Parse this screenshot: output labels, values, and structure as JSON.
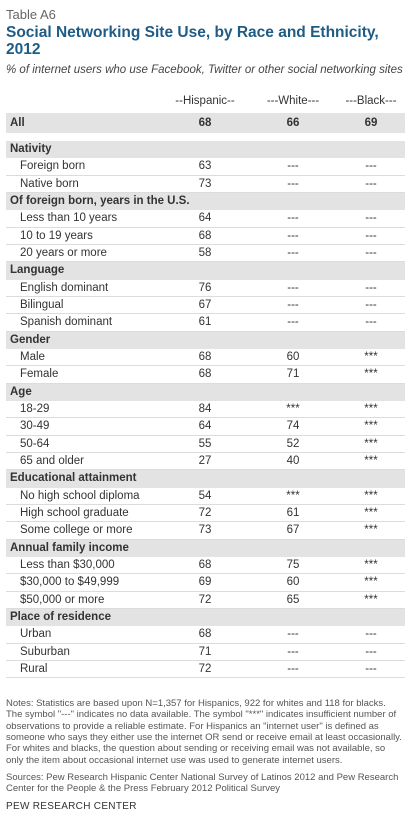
{
  "tag": "Table A6",
  "title": "Social Networking Site Use, by Race and Ethnicity, 2012",
  "subtitle": "% of internet users who use Facebook, Twitter or other social networking sites",
  "columns": [
    "--Hispanic--",
    "---White---",
    "---Black---"
  ],
  "all": {
    "label": "All",
    "values": [
      "68",
      "66",
      "69"
    ]
  },
  "sections": [
    {
      "title": "Nativity",
      "rows": [
        {
          "label": "Foreign born",
          "values": [
            "63",
            "---",
            "---"
          ]
        },
        {
          "label": "Native born",
          "values": [
            "73",
            "---",
            "---"
          ]
        }
      ]
    },
    {
      "title": "Of foreign born, years in the U.S.",
      "rows": [
        {
          "label": "Less than 10 years",
          "values": [
            "64",
            "---",
            "---"
          ]
        },
        {
          "label": "10 to 19 years",
          "values": [
            "68",
            "---",
            "---"
          ]
        },
        {
          "label": "20 years or more",
          "values": [
            "58",
            "---",
            "---"
          ]
        }
      ]
    },
    {
      "title": "Language",
      "rows": [
        {
          "label": "English dominant",
          "values": [
            "76",
            "---",
            "---"
          ]
        },
        {
          "label": "Bilingual",
          "values": [
            "67",
            "---",
            "---"
          ]
        },
        {
          "label": "Spanish dominant",
          "values": [
            "61",
            "---",
            "---"
          ]
        }
      ]
    },
    {
      "title": "Gender",
      "rows": [
        {
          "label": "Male",
          "values": [
            "68",
            "60",
            "***"
          ]
        },
        {
          "label": "Female",
          "values": [
            "68",
            "71",
            "***"
          ]
        }
      ]
    },
    {
      "title": "Age",
      "rows": [
        {
          "label": "18-29",
          "values": [
            "84",
            "***",
            "***"
          ]
        },
        {
          "label": "30-49",
          "values": [
            "64",
            "74",
            "***"
          ]
        },
        {
          "label": "50-64",
          "values": [
            "55",
            "52",
            "***"
          ]
        },
        {
          "label": "65 and older",
          "values": [
            "27",
            "40",
            "***"
          ]
        }
      ]
    },
    {
      "title": "Educational attainment",
      "rows": [
        {
          "label": "No high school diploma",
          "values": [
            "54",
            "***",
            "***"
          ]
        },
        {
          "label": "High school graduate",
          "values": [
            "72",
            "61",
            "***"
          ]
        },
        {
          "label": "Some college or more",
          "values": [
            "73",
            "67",
            "***"
          ]
        }
      ]
    },
    {
      "title": "Annual family income",
      "rows": [
        {
          "label": "Less than $30,000",
          "values": [
            "68",
            "75",
            "***"
          ]
        },
        {
          "label": "$30,000 to $49,999",
          "values": [
            "69",
            "60",
            "***"
          ]
        },
        {
          "label": "$50,000 or more",
          "values": [
            "72",
            "65",
            "***"
          ]
        }
      ]
    },
    {
      "title": "Place of residence",
      "rows": [
        {
          "label": "Urban",
          "values": [
            "68",
            "---",
            "---"
          ]
        },
        {
          "label": "Suburban",
          "values": [
            "71",
            "---",
            "---"
          ]
        },
        {
          "label": "Rural",
          "values": [
            "72",
            "---",
            "---"
          ]
        }
      ]
    }
  ],
  "notes": "Notes: Statistics are based upon N=1,357 for Hispanics, 922 for whites and 118 for blacks. The symbol \"---\" indicates no data available. The symbol \"***\" indicates insufficient number of observations to provide a reliable estimate. For Hispanics an \"internet user\" is defined as someone who says they either use the internet OR send or receive email at least occasionally. For whites and blacks, the question about sending or receiving email was not available, so only the item about occasional internet use was used to generate internet users.",
  "sources": "Sources: Pew Research Hispanic Center National Survey of Latinos 2012 and Pew Research Center for the People & the Press February 2012 Political Survey",
  "footer": "PEW RESEARCH CENTER"
}
